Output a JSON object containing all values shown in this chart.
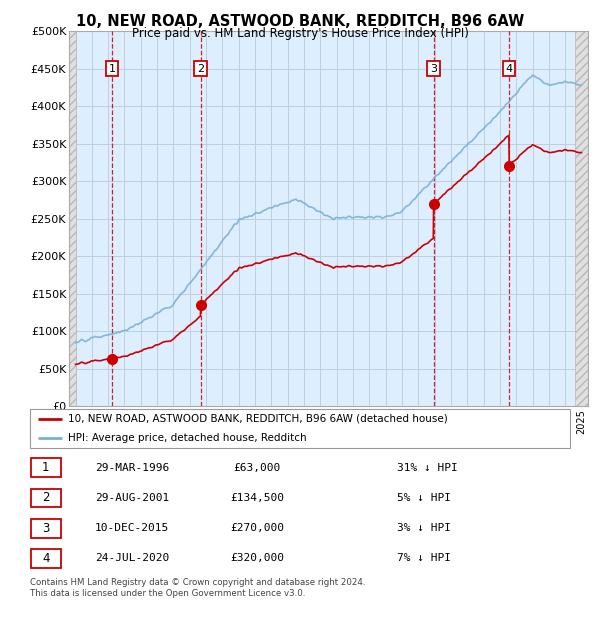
{
  "title1": "10, NEW ROAD, ASTWOOD BANK, REDDITCH, B96 6AW",
  "title2": "Price paid vs. HM Land Registry's House Price Index (HPI)",
  "ylim": [
    0,
    500000
  ],
  "yticks": [
    0,
    50000,
    100000,
    150000,
    200000,
    250000,
    300000,
    350000,
    400000,
    450000,
    500000
  ],
  "ytick_labels": [
    "£0",
    "£50K",
    "£100K",
    "£150K",
    "£200K",
    "£250K",
    "£300K",
    "£350K",
    "£400K",
    "£450K",
    "£500K"
  ],
  "xlim_start": 1993.6,
  "xlim_end": 2025.4,
  "hatch_left_end": 1994.0,
  "hatch_right_start": 2024.58,
  "sale_dates": [
    1996.24,
    2001.66,
    2015.94,
    2020.56
  ],
  "sale_prices": [
    63000,
    134500,
    270000,
    320000
  ],
  "sale_labels": [
    "1",
    "2",
    "3",
    "4"
  ],
  "sale_color": "#cc0000",
  "hpi_color": "#7ab0d4",
  "bg_main_color": "#ddeeff",
  "bg_hatch_color": "#d8d8d8",
  "grid_color": "#c0cfe0",
  "legend_sale_label": "10, NEW ROAD, ASTWOOD BANK, REDDITCH, B96 6AW (detached house)",
  "legend_hpi_label": "HPI: Average price, detached house, Redditch",
  "table_rows": [
    {
      "num": "1",
      "date": "29-MAR-1996",
      "price": "£63,000",
      "hpi": "31% ↓ HPI"
    },
    {
      "num": "2",
      "date": "29-AUG-2001",
      "price": "£134,500",
      "hpi": "5% ↓ HPI"
    },
    {
      "num": "3",
      "date": "10-DEC-2015",
      "price": "£270,000",
      "hpi": "3% ↓ HPI"
    },
    {
      "num": "4",
      "date": "24-JUL-2020",
      "price": "£320,000",
      "hpi": "7% ↓ HPI"
    }
  ],
  "footnote1": "Contains HM Land Registry data © Crown copyright and database right 2024.",
  "footnote2": "This data is licensed under the Open Government Licence v3.0."
}
